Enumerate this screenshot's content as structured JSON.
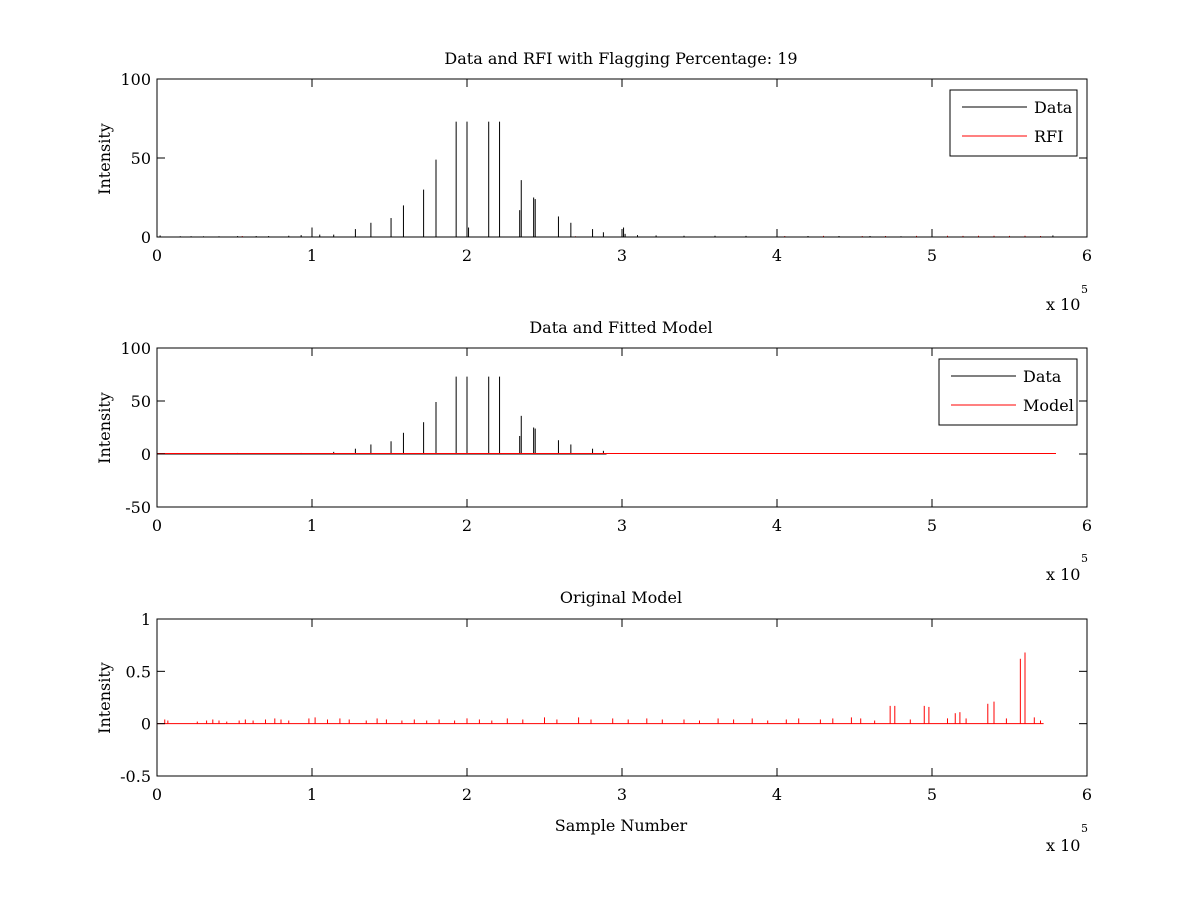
{
  "chart_data": [
    {
      "type": "line",
      "title": "Data and RFI with Flagging Percentage: 19",
      "xlabel": "",
      "ylabel": "Intensity",
      "xlim": [
        0,
        6
      ],
      "ylim": [
        0,
        100
      ],
      "x_multiplier": "x 10",
      "x_multiplier_exp": "5",
      "xticks": [
        0,
        1,
        2,
        3,
        4,
        5,
        6
      ],
      "yticks": [
        0,
        50,
        100
      ],
      "legend_position": "top-right",
      "series": [
        {
          "name": "Data",
          "color": "#000000",
          "spikes": [
            [
              0.02,
              1.0
            ],
            [
              0.15,
              0.5
            ],
            [
              0.22,
              0.5
            ],
            [
              0.3,
              0.5
            ],
            [
              0.4,
              0.5
            ],
            [
              0.52,
              0.6
            ],
            [
              0.64,
              0.6
            ],
            [
              0.72,
              0.6
            ],
            [
              0.85,
              0.8
            ],
            [
              0.93,
              1.2
            ],
            [
              1.0,
              6.0
            ],
            [
              1.05,
              1.5
            ],
            [
              1.14,
              1.5
            ],
            [
              1.28,
              5.0
            ],
            [
              1.38,
              9.0
            ],
            [
              1.51,
              12.0
            ],
            [
              1.59,
              20.0
            ],
            [
              1.72,
              30.0
            ],
            [
              1.8,
              49.0
            ],
            [
              1.93,
              73.0
            ],
            [
              2.0,
              73.0
            ],
            [
              2.01,
              6.0
            ],
            [
              2.14,
              73.0
            ],
            [
              2.21,
              73.0
            ],
            [
              2.34,
              17.0
            ],
            [
              2.35,
              36.0
            ],
            [
              2.43,
              25.0
            ],
            [
              2.44,
              24.0
            ],
            [
              2.59,
              13.0
            ],
            [
              2.67,
              9.0
            ],
            [
              2.81,
              5.0
            ],
            [
              2.88,
              3.0
            ],
            [
              3.01,
              6.0
            ],
            [
              3.02,
              2.0
            ],
            [
              3.1,
              1.2
            ],
            [
              3.22,
              1.0
            ],
            [
              3.4,
              0.8
            ],
            [
              3.6,
              0.8
            ],
            [
              3.8,
              0.7
            ],
            [
              4.0,
              0.6
            ],
            [
              4.2,
              0.6
            ],
            [
              4.4,
              0.6
            ],
            [
              4.6,
              0.6
            ],
            [
              4.8,
              0.5
            ],
            [
              5.0,
              0.5
            ],
            [
              5.3,
              0.5
            ],
            [
              5.6,
              0.5
            ],
            [
              5.78,
              1.0
            ]
          ]
        },
        {
          "name": "RFI",
          "color": "#ff0000",
          "spikes": [
            [
              0.55,
              0.6
            ],
            [
              2.7,
              0.5
            ],
            [
              4.05,
              0.6
            ],
            [
              4.3,
              0.7
            ],
            [
              4.55,
              0.6
            ],
            [
              4.7,
              0.6
            ],
            [
              4.9,
              0.7
            ],
            [
              5.0,
              1.0
            ],
            [
              5.1,
              0.8
            ],
            [
              5.2,
              0.7
            ],
            [
              5.3,
              0.8
            ],
            [
              5.4,
              0.8
            ],
            [
              5.5,
              0.7
            ],
            [
              5.6,
              0.8
            ],
            [
              5.7,
              0.6
            ]
          ]
        }
      ]
    },
    {
      "type": "line",
      "title": "Data and Fitted Model",
      "xlabel": "",
      "ylabel": "Intensity",
      "xlim": [
        0,
        6
      ],
      "ylim": [
        -50,
        100
      ],
      "x_multiplier": "x 10",
      "x_multiplier_exp": "5",
      "xticks": [
        0,
        1,
        2,
        3,
        4,
        5,
        6
      ],
      "yticks": [
        -50,
        0,
        50,
        100
      ],
      "legend_position": "top-right",
      "series": [
        {
          "name": "Data",
          "color": "#000000",
          "spikes": [
            [
              0.52,
              1.0
            ],
            [
              0.93,
              1.0
            ],
            [
              1.14,
              2.0
            ],
            [
              1.28,
              5.0
            ],
            [
              1.38,
              9.0
            ],
            [
              1.51,
              12.0
            ],
            [
              1.59,
              20.0
            ],
            [
              1.72,
              30.0
            ],
            [
              1.8,
              49.0
            ],
            [
              1.93,
              73.0
            ],
            [
              2.0,
              73.0
            ],
            [
              2.14,
              73.0
            ],
            [
              2.21,
              73.0
            ],
            [
              2.34,
              17.0
            ],
            [
              2.35,
              36.0
            ],
            [
              2.43,
              25.0
            ],
            [
              2.44,
              24.0
            ],
            [
              2.59,
              13.0
            ],
            [
              2.67,
              9.0
            ],
            [
              2.81,
              5.0
            ],
            [
              2.88,
              3.0
            ]
          ]
        },
        {
          "name": "Model",
          "color": "#ff0000",
          "flat": {
            "x_start": 0.0,
            "x_end": 5.8,
            "y": 0.5
          },
          "spikes": []
        }
      ]
    },
    {
      "type": "line",
      "title": "Original Model",
      "xlabel": "Sample Number",
      "ylabel": "Intensity",
      "xlim": [
        0,
        6
      ],
      "ylim": [
        -0.5,
        1
      ],
      "x_multiplier": "x 10",
      "x_multiplier_exp": "5",
      "xticks": [
        0,
        1,
        2,
        3,
        4,
        5,
        6
      ],
      "yticks": [
        -0.5,
        0,
        0.5,
        1
      ],
      "series": [
        {
          "name": "",
          "color": "#ff0000",
          "spikes": [
            [
              0.05,
              0.04
            ],
            [
              0.07,
              0.03
            ],
            [
              0.26,
              0.02
            ],
            [
              0.32,
              0.03
            ],
            [
              0.36,
              0.04
            ],
            [
              0.4,
              0.03
            ],
            [
              0.45,
              0.02
            ],
            [
              0.53,
              0.03
            ],
            [
              0.57,
              0.04
            ],
            [
              0.62,
              0.03
            ],
            [
              0.7,
              0.04
            ],
            [
              0.76,
              0.05
            ],
            [
              0.8,
              0.04
            ],
            [
              0.85,
              0.03
            ],
            [
              0.98,
              0.05
            ],
            [
              1.02,
              0.06
            ],
            [
              1.1,
              0.04
            ],
            [
              1.18,
              0.05
            ],
            [
              1.24,
              0.04
            ],
            [
              1.35,
              0.03
            ],
            [
              1.42,
              0.05
            ],
            [
              1.48,
              0.04
            ],
            [
              1.58,
              0.03
            ],
            [
              1.66,
              0.04
            ],
            [
              1.74,
              0.03
            ],
            [
              1.82,
              0.04
            ],
            [
              1.92,
              0.03
            ],
            [
              2.0,
              0.05
            ],
            [
              2.08,
              0.04
            ],
            [
              2.16,
              0.03
            ],
            [
              2.26,
              0.05
            ],
            [
              2.36,
              0.04
            ],
            [
              2.5,
              0.06
            ],
            [
              2.58,
              0.04
            ],
            [
              2.72,
              0.06
            ],
            [
              2.8,
              0.04
            ],
            [
              2.94,
              0.05
            ],
            [
              3.04,
              0.04
            ],
            [
              3.16,
              0.05
            ],
            [
              3.26,
              0.04
            ],
            [
              3.4,
              0.04
            ],
            [
              3.5,
              0.03
            ],
            [
              3.62,
              0.05
            ],
            [
              3.72,
              0.04
            ],
            [
              3.84,
              0.05
            ],
            [
              3.94,
              0.03
            ],
            [
              4.06,
              0.04
            ],
            [
              4.14,
              0.05
            ],
            [
              4.28,
              0.04
            ],
            [
              4.36,
              0.05
            ],
            [
              4.48,
              0.06
            ],
            [
              4.54,
              0.05
            ],
            [
              4.63,
              0.03
            ],
            [
              4.73,
              0.17
            ],
            [
              4.76,
              0.17
            ],
            [
              4.86,
              0.04
            ],
            [
              4.95,
              0.17
            ],
            [
              4.98,
              0.16
            ],
            [
              5.1,
              0.05
            ],
            [
              5.15,
              0.1
            ],
            [
              5.18,
              0.11
            ],
            [
              5.22,
              0.05
            ],
            [
              5.36,
              0.19
            ],
            [
              5.4,
              0.21
            ],
            [
              5.48,
              0.05
            ],
            [
              5.57,
              0.62
            ],
            [
              5.6,
              0.68
            ],
            [
              5.66,
              0.06
            ],
            [
              5.7,
              0.03
            ]
          ]
        }
      ]
    }
  ]
}
